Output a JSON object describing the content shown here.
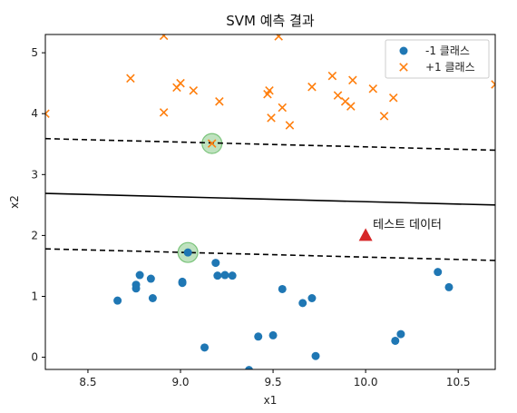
{
  "chart_data": {
    "type": "scatter",
    "title": "SVM 예측 결과",
    "xlabel": "x1",
    "ylabel": "x2",
    "xlim": [
      8.27,
      10.7
    ],
    "ylim": [
      -0.2,
      5.3
    ],
    "xticks": [
      8.5,
      9.0,
      9.5,
      10.0,
      10.5
    ],
    "xtick_labels": [
      "8.5",
      "9.0",
      "9.5",
      "10.0",
      "10.5"
    ],
    "yticks": [
      0,
      1,
      2,
      3,
      4,
      5
    ],
    "ytick_labels": [
      "0",
      "1",
      "2",
      "3",
      "4",
      "5"
    ],
    "grid": false,
    "legend_position": "top-right",
    "series": [
      {
        "name": "-1 클래스",
        "marker": "circle",
        "color": "#1f77b4",
        "points": [
          [
            8.66,
            0.93
          ],
          [
            8.76,
            1.13
          ],
          [
            8.76,
            1.19
          ],
          [
            8.78,
            1.35
          ],
          [
            8.84,
            1.29
          ],
          [
            8.85,
            0.97
          ],
          [
            9.01,
            1.22
          ],
          [
            9.01,
            1.24
          ],
          [
            9.04,
            1.72
          ],
          [
            9.13,
            0.16
          ],
          [
            9.19,
            1.55
          ],
          [
            9.2,
            1.34
          ],
          [
            9.24,
            1.35
          ],
          [
            9.28,
            1.34
          ],
          [
            9.37,
            -0.21
          ],
          [
            9.42,
            0.34
          ],
          [
            9.5,
            0.36
          ],
          [
            9.55,
            1.12
          ],
          [
            9.66,
            0.89
          ],
          [
            9.71,
            0.97
          ],
          [
            9.73,
            0.02
          ],
          [
            10.16,
            0.27
          ],
          [
            10.19,
            0.38
          ],
          [
            10.39,
            1.4
          ],
          [
            10.45,
            1.15
          ]
        ]
      },
      {
        "name": "+1 클래스",
        "marker": "x",
        "color": "#ff7f0e",
        "points": [
          [
            8.27,
            4.0
          ],
          [
            8.73,
            4.58
          ],
          [
            8.91,
            4.02
          ],
          [
            8.91,
            5.28
          ],
          [
            8.98,
            4.43
          ],
          [
            9.0,
            4.5
          ],
          [
            9.07,
            4.38
          ],
          [
            9.17,
            3.51
          ],
          [
            9.21,
            4.2
          ],
          [
            9.47,
            4.32
          ],
          [
            9.48,
            4.38
          ],
          [
            9.49,
            3.93
          ],
          [
            9.53,
            5.27
          ],
          [
            9.55,
            4.1
          ],
          [
            9.59,
            3.81
          ],
          [
            9.71,
            4.44
          ],
          [
            9.82,
            4.62
          ],
          [
            9.85,
            4.3
          ],
          [
            9.89,
            4.2
          ],
          [
            9.92,
            4.12
          ],
          [
            9.93,
            4.55
          ],
          [
            10.04,
            4.41
          ],
          [
            10.1,
            3.96
          ],
          [
            10.15,
            4.26
          ],
          [
            10.7,
            4.48
          ]
        ]
      }
    ],
    "support_vectors": [
      [
        9.04,
        1.72
      ],
      [
        9.17,
        3.51
      ]
    ],
    "decision_boundary": {
      "x": [
        8.27,
        10.7
      ],
      "y": [
        2.69,
        2.5
      ]
    },
    "margin_upper": {
      "x": [
        8.27,
        10.7
      ],
      "y": [
        3.59,
        3.4
      ]
    },
    "margin_lower": {
      "x": [
        8.27,
        10.7
      ],
      "y": [
        1.78,
        1.59
      ]
    },
    "test_point": {
      "x": 10.0,
      "y": 2.0,
      "marker": "triangle",
      "color": "#d62728",
      "label": "테스트 데이터"
    }
  }
}
